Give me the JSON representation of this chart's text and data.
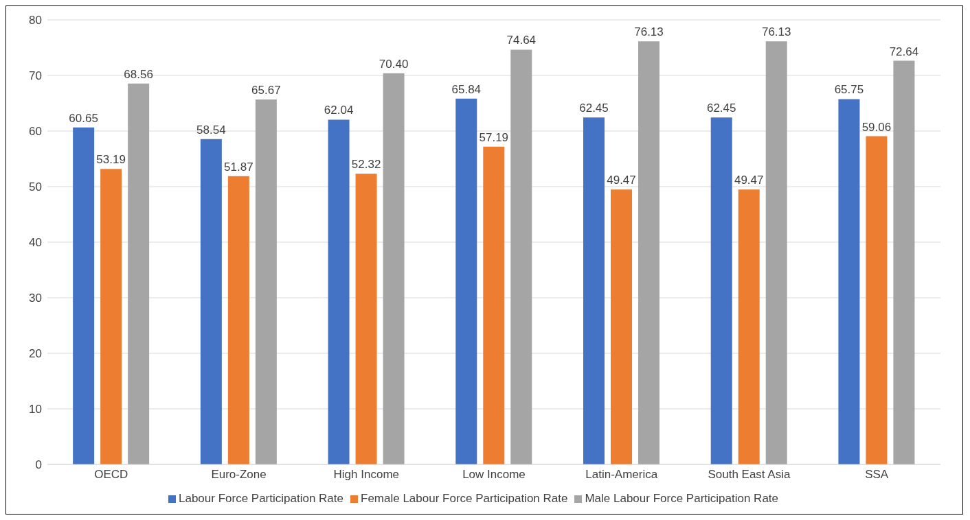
{
  "chart_data": {
    "type": "bar",
    "categories": [
      "OECD",
      "Euro-Zone",
      "High Income",
      "Low Income",
      "Latin-America",
      "South East Asia",
      "SSA"
    ],
    "series": [
      {
        "name": "Labour Force Participation Rate",
        "color": "#4472c4",
        "values": [
          60.65,
          58.54,
          62.04,
          65.84,
          62.45,
          62.45,
          65.75
        ],
        "value_labels": [
          "60.65",
          "58.54",
          "62.04",
          "65.84",
          "62.45",
          "62.45",
          "65.75"
        ]
      },
      {
        "name": "Female Labour Force Participation Rate",
        "color": "#ed7d31",
        "values": [
          53.19,
          51.87,
          52.32,
          57.19,
          49.47,
          49.47,
          59.06
        ],
        "value_labels": [
          "53.19",
          "51.87",
          "52.32",
          "57.19",
          "49.47",
          "49.47",
          "59.06"
        ]
      },
      {
        "name": "Male Labour Force Participation Rate",
        "color": "#a5a5a5",
        "values": [
          68.56,
          65.67,
          70.4,
          74.64,
          76.13,
          76.13,
          72.64
        ],
        "value_labels": [
          "68.56",
          "65.67",
          "70.40",
          "74.64",
          "76.13",
          "76.13",
          "72.64"
        ]
      }
    ],
    "ylim": [
      0,
      80
    ],
    "yticks": [
      0,
      10,
      20,
      30,
      40,
      50,
      60,
      70,
      80
    ],
    "grid": "y",
    "legend": "bottom"
  }
}
